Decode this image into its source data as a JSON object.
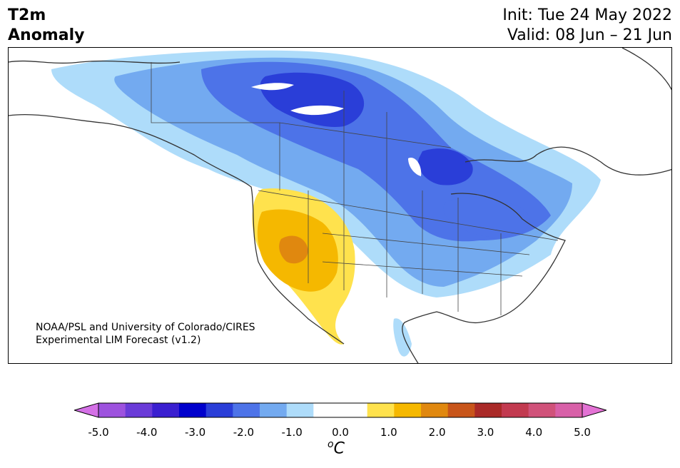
{
  "title": {
    "line1": "T2m",
    "line2": "Anomaly"
  },
  "init_text": "Init: Tue 24 May 2022",
  "valid_text": "Valid: 08 Jun – 21 Jun",
  "credit": {
    "line1": "NOAA/PSL and University of Colorado/CIRES",
    "line2": "Experimental LIM Forecast (v1.2)"
  },
  "colorbar": {
    "unit_base": "C",
    "unit_super": "o",
    "colors": [
      "#d470e6",
      "#9d52de",
      "#6a3bd8",
      "#3a1fd0",
      "#0000cc",
      "#2a3ed8",
      "#4d73e8",
      "#73aaf0",
      "#aedcfa",
      "#ffffff",
      "#ffffff",
      "#ffe24d",
      "#f5b800",
      "#e0880f",
      "#c8551a",
      "#aa2a28",
      "#c23a50",
      "#d0527a",
      "#d860a8",
      "#e372d4"
    ],
    "ticks": [
      "-5.0",
      "-4.0",
      "-3.0",
      "-2.0",
      "-1.0",
      "0.0",
      "1.0",
      "2.0",
      "3.0",
      "4.0",
      "5.0"
    ]
  }
}
